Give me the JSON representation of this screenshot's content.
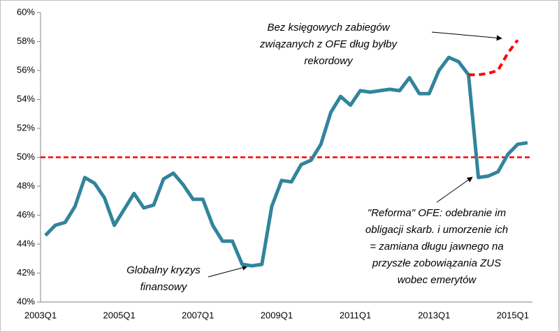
{
  "chart_data": {
    "type": "line",
    "categories": [
      "2003Q1",
      null,
      null,
      null,
      null,
      null,
      null,
      null,
      "2005Q1",
      null,
      null,
      null,
      null,
      null,
      null,
      null,
      "2007Q1",
      null,
      null,
      null,
      null,
      null,
      null,
      null,
      "2009Q1",
      null,
      null,
      null,
      null,
      null,
      null,
      null,
      "2011Q1",
      null,
      null,
      null,
      null,
      null,
      null,
      null,
      "2013Q1",
      null,
      null,
      null,
      null,
      null,
      null,
      null,
      "2015Q1",
      null
    ],
    "series": [
      {
        "color": "#31849b",
        "style": "solid",
        "values": [
          44.6,
          45.3,
          45.5,
          46.6,
          48.6,
          48.2,
          47.2,
          45.3,
          46.4,
          47.5,
          46.5,
          46.7,
          48.5,
          48.9,
          48.1,
          47.1,
          47.1,
          45.3,
          44.2,
          44.2,
          42.6,
          42.5,
          42.6,
          46.6,
          48.4,
          48.3,
          49.5,
          49.8,
          50.9,
          53.1,
          54.2,
          53.6,
          54.6,
          54.5,
          54.6,
          54.7,
          54.6,
          55.5,
          54.4,
          54.4,
          56.0,
          56.9,
          56.6,
          55.7,
          48.6,
          48.7,
          49.0,
          50.2,
          50.9,
          51.0
        ]
      },
      {
        "color": "#ff0000",
        "style": "dashed",
        "values": [
          null,
          null,
          null,
          null,
          null,
          null,
          null,
          null,
          null,
          null,
          null,
          null,
          null,
          null,
          null,
          null,
          null,
          null,
          null,
          null,
          null,
          null,
          null,
          null,
          null,
          null,
          null,
          null,
          null,
          null,
          null,
          null,
          null,
          null,
          null,
          null,
          null,
          null,
          null,
          null,
          null,
          null,
          null,
          55.7,
          55.7,
          55.8,
          56.0,
          57.2,
          58.1,
          null
        ]
      }
    ],
    "reference_line": {
      "value": 50,
      "color": "#ff0000"
    },
    "ylim": [
      40,
      60
    ],
    "yticks": [
      {
        "value": 40,
        "label": "40%"
      },
      {
        "value": 42,
        "label": "42%"
      },
      {
        "value": 44,
        "label": "44%"
      },
      {
        "value": 46,
        "label": "46%"
      },
      {
        "value": 48,
        "label": "48%"
      },
      {
        "value": 50,
        "label": "50%"
      },
      {
        "value": 52,
        "label": "52%"
      },
      {
        "value": 54,
        "label": "54%"
      },
      {
        "value": 56,
        "label": "56%"
      },
      {
        "value": 58,
        "label": "58%"
      },
      {
        "value": 60,
        "label": "60%"
      }
    ],
    "annotations": [
      {
        "lines": [
          "Bez księgowych zabiegów",
          "związanych z OFE dług byłby",
          "rekordowy"
        ]
      },
      {
        "lines": [
          "\"Reforma\" OFE: odebranie im",
          "obligacji skarb. i umorzenie ich",
          "= zamiana długu jawnego na",
          "przyszłe zobowiązania ZUS",
          "wobec emerytów"
        ]
      },
      {
        "lines": [
          "Globalny kryzys",
          "finansowy"
        ]
      }
    ]
  }
}
